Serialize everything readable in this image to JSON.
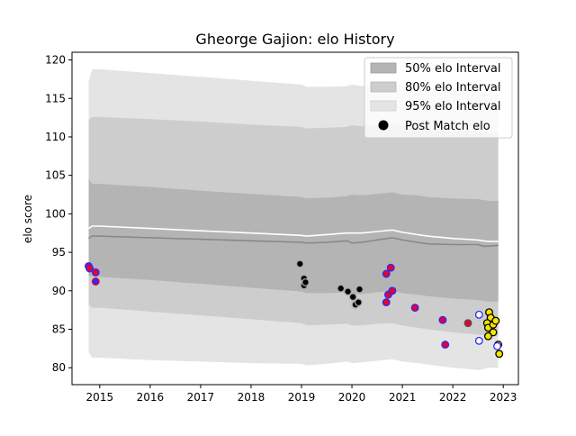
{
  "chart_data": {
    "type": "scatter",
    "title": "Gheorge Gajion: elo History",
    "xlabel": "",
    "ylabel": "elo score",
    "xlim": [
      2014.45,
      2023.3
    ],
    "ylim": [
      77.8,
      121.0
    ],
    "xticks": [
      2015,
      2016,
      2017,
      2018,
      2019,
      2020,
      2021,
      2022,
      2023
    ],
    "yticks": [
      80,
      85,
      90,
      95,
      100,
      105,
      110,
      115,
      120
    ],
    "legend": {
      "placement": "top-right",
      "entries": [
        "50% elo Interval",
        "80% elo Interval",
        "95% elo Interval",
        "Post Match elo"
      ]
    },
    "colors": {
      "band95": "#e4e4e4",
      "band80": "#cdcdcd",
      "band50": "#b4b4b4",
      "median_line": "#888888",
      "mean_line": "#ffffff"
    },
    "bands": {
      "x": [
        2014.78,
        2014.85,
        2015.0,
        2016.0,
        2017.0,
        2018.0,
        2019.0,
        2019.1,
        2019.5,
        2019.9,
        2020.0,
        2020.2,
        2020.5,
        2020.8,
        2021.0,
        2021.3,
        2021.5,
        2022.0,
        2022.5,
        2022.6,
        2022.7,
        2022.9
      ],
      "p95_upper": [
        117.2,
        118.8,
        118.8,
        118.3,
        117.8,
        117.3,
        116.8,
        116.5,
        116.5,
        116.6,
        116.8,
        116.6,
        116.8,
        117.1,
        116.6,
        116.6,
        116.3,
        116.0,
        116.0,
        115.8,
        115.5,
        115.5
      ],
      "p80_upper": [
        112.2,
        112.6,
        112.6,
        112.3,
        112.0,
        111.6,
        111.3,
        111.1,
        111.2,
        111.3,
        111.5,
        111.4,
        111.5,
        111.7,
        111.4,
        111.3,
        111.1,
        110.8,
        110.8,
        110.7,
        110.5,
        110.5
      ],
      "p50_upper": [
        104.5,
        103.9,
        103.9,
        103.5,
        103.0,
        102.6,
        102.2,
        102.0,
        102.1,
        102.3,
        102.5,
        102.4,
        102.6,
        102.8,
        102.5,
        102.4,
        102.2,
        102.0,
        101.9,
        101.8,
        101.7,
        101.7
      ],
      "median": [
        96.8,
        97.1,
        97.1,
        96.9,
        96.7,
        96.5,
        96.3,
        96.2,
        96.3,
        96.5,
        96.2,
        96.3,
        96.6,
        96.9,
        96.6,
        96.3,
        96.1,
        96.0,
        96.0,
        95.8,
        95.8,
        95.9
      ],
      "mean": [
        98.1,
        98.4,
        98.4,
        98.1,
        97.8,
        97.5,
        97.2,
        97.1,
        97.3,
        97.5,
        97.5,
        97.5,
        97.7,
        97.9,
        97.6,
        97.3,
        97.1,
        96.8,
        96.6,
        96.5,
        96.4,
        96.4
      ],
      "p50_lower": [
        92.0,
        91.8,
        91.8,
        91.4,
        90.9,
        90.4,
        89.9,
        89.7,
        89.7,
        89.8,
        89.6,
        89.6,
        89.8,
        90.0,
        89.7,
        89.5,
        89.3,
        89.0,
        88.8,
        88.7,
        88.6,
        88.6
      ],
      "p80_lower": [
        88.2,
        87.8,
        87.8,
        87.3,
        86.8,
        86.3,
        85.8,
        85.5,
        85.6,
        85.7,
        85.5,
        85.5,
        85.7,
        85.8,
        85.5,
        85.2,
        85.0,
        84.6,
        84.3,
        84.2,
        84.1,
        84.1
      ],
      "p95_lower": [
        82.0,
        81.3,
        81.3,
        81.0,
        80.8,
        80.6,
        80.5,
        80.3,
        80.5,
        80.8,
        80.6,
        80.7,
        80.9,
        81.1,
        80.8,
        80.6,
        80.4,
        80.0,
        79.7,
        79.8,
        80.0,
        80.0
      ]
    },
    "points": [
      {
        "x": 2014.78,
        "y": 93.2,
        "fill": "#e8002a",
        "edge": "#2b2bff"
      },
      {
        "x": 2014.8,
        "y": 92.9,
        "fill": "#e8002a",
        "edge": "#2b2bff"
      },
      {
        "x": 2014.92,
        "y": 92.4,
        "fill": "#e8002a",
        "edge": "#2b2bff"
      },
      {
        "x": 2014.92,
        "y": 91.2,
        "fill": "#2b2bff",
        "edge": "#e8002a"
      },
      {
        "x": 2018.97,
        "y": 93.5,
        "fill": "#000000",
        "edge": "#aaaaaa"
      },
      {
        "x": 2019.05,
        "y": 91.6,
        "fill": "#000000",
        "edge": "#aaaaaa"
      },
      {
        "x": 2019.05,
        "y": 90.7,
        "fill": "#000000",
        "edge": "#aaaaaa"
      },
      {
        "x": 2019.08,
        "y": 91.1,
        "fill": "#000000",
        "edge": "#aaaaaa"
      },
      {
        "x": 2019.78,
        "y": 90.3,
        "fill": "#000000",
        "edge": "#aaaaaa"
      },
      {
        "x": 2019.92,
        "y": 89.9,
        "fill": "#000000",
        "edge": "#aaaaaa"
      },
      {
        "x": 2020.02,
        "y": 89.2,
        "fill": "#000000",
        "edge": "#aaaaaa"
      },
      {
        "x": 2020.07,
        "y": 88.2,
        "fill": "#000000",
        "edge": "#aaaaaa"
      },
      {
        "x": 2020.13,
        "y": 88.5,
        "fill": "#000000",
        "edge": "#aaaaaa"
      },
      {
        "x": 2020.15,
        "y": 90.2,
        "fill": "#000000",
        "edge": "#aaaaaa"
      },
      {
        "x": 2020.68,
        "y": 92.2,
        "fill": "#e8002a",
        "edge": "#2b2bff"
      },
      {
        "x": 2020.77,
        "y": 93.0,
        "fill": "#e8002a",
        "edge": "#2b2bff"
      },
      {
        "x": 2020.72,
        "y": 89.5,
        "fill": "#e8002a",
        "edge": "#2b2bff"
      },
      {
        "x": 2020.8,
        "y": 90.0,
        "fill": "#e8002a",
        "edge": "#2b2bff"
      },
      {
        "x": 2020.68,
        "y": 88.5,
        "fill": "#e8002a",
        "edge": "#2b2bff"
      },
      {
        "x": 2021.25,
        "y": 87.8,
        "fill": "#e8002a",
        "edge": "#2b2bff"
      },
      {
        "x": 2021.8,
        "y": 86.2,
        "fill": "#e8002a",
        "edge": "#2b2bff"
      },
      {
        "x": 2021.85,
        "y": 83.0,
        "fill": "#e8002a",
        "edge": "#2b2bff"
      },
      {
        "x": 2022.3,
        "y": 85.8,
        "fill": "#e8002a",
        "edge": "#555555"
      },
      {
        "x": 2022.52,
        "y": 86.9,
        "fill": "#ffffff",
        "edge": "#2b2bff"
      },
      {
        "x": 2022.52,
        "y": 83.5,
        "fill": "#ffffff",
        "edge": "#2b2bff"
      },
      {
        "x": 2022.72,
        "y": 87.2,
        "fill": "#f5e600",
        "edge": "#000000"
      },
      {
        "x": 2022.75,
        "y": 86.5,
        "fill": "#f5e600",
        "edge": "#000000"
      },
      {
        "x": 2022.68,
        "y": 85.8,
        "fill": "#f5e600",
        "edge": "#000000"
      },
      {
        "x": 2022.7,
        "y": 85.2,
        "fill": "#f5e600",
        "edge": "#000000"
      },
      {
        "x": 2022.8,
        "y": 85.6,
        "fill": "#f5e600",
        "edge": "#000000"
      },
      {
        "x": 2022.85,
        "y": 86.1,
        "fill": "#f5e600",
        "edge": "#000000"
      },
      {
        "x": 2022.8,
        "y": 84.6,
        "fill": "#f5e600",
        "edge": "#000000"
      },
      {
        "x": 2022.7,
        "y": 84.1,
        "fill": "#f5e600",
        "edge": "#000000"
      },
      {
        "x": 2022.9,
        "y": 83.0,
        "fill": "#f5e600",
        "edge": "#000000"
      },
      {
        "x": 2022.88,
        "y": 82.8,
        "fill": "#ffffff",
        "edge": "#2b2bff"
      },
      {
        "x": 2022.92,
        "y": 81.8,
        "fill": "#f5e600",
        "edge": "#000000"
      }
    ]
  }
}
